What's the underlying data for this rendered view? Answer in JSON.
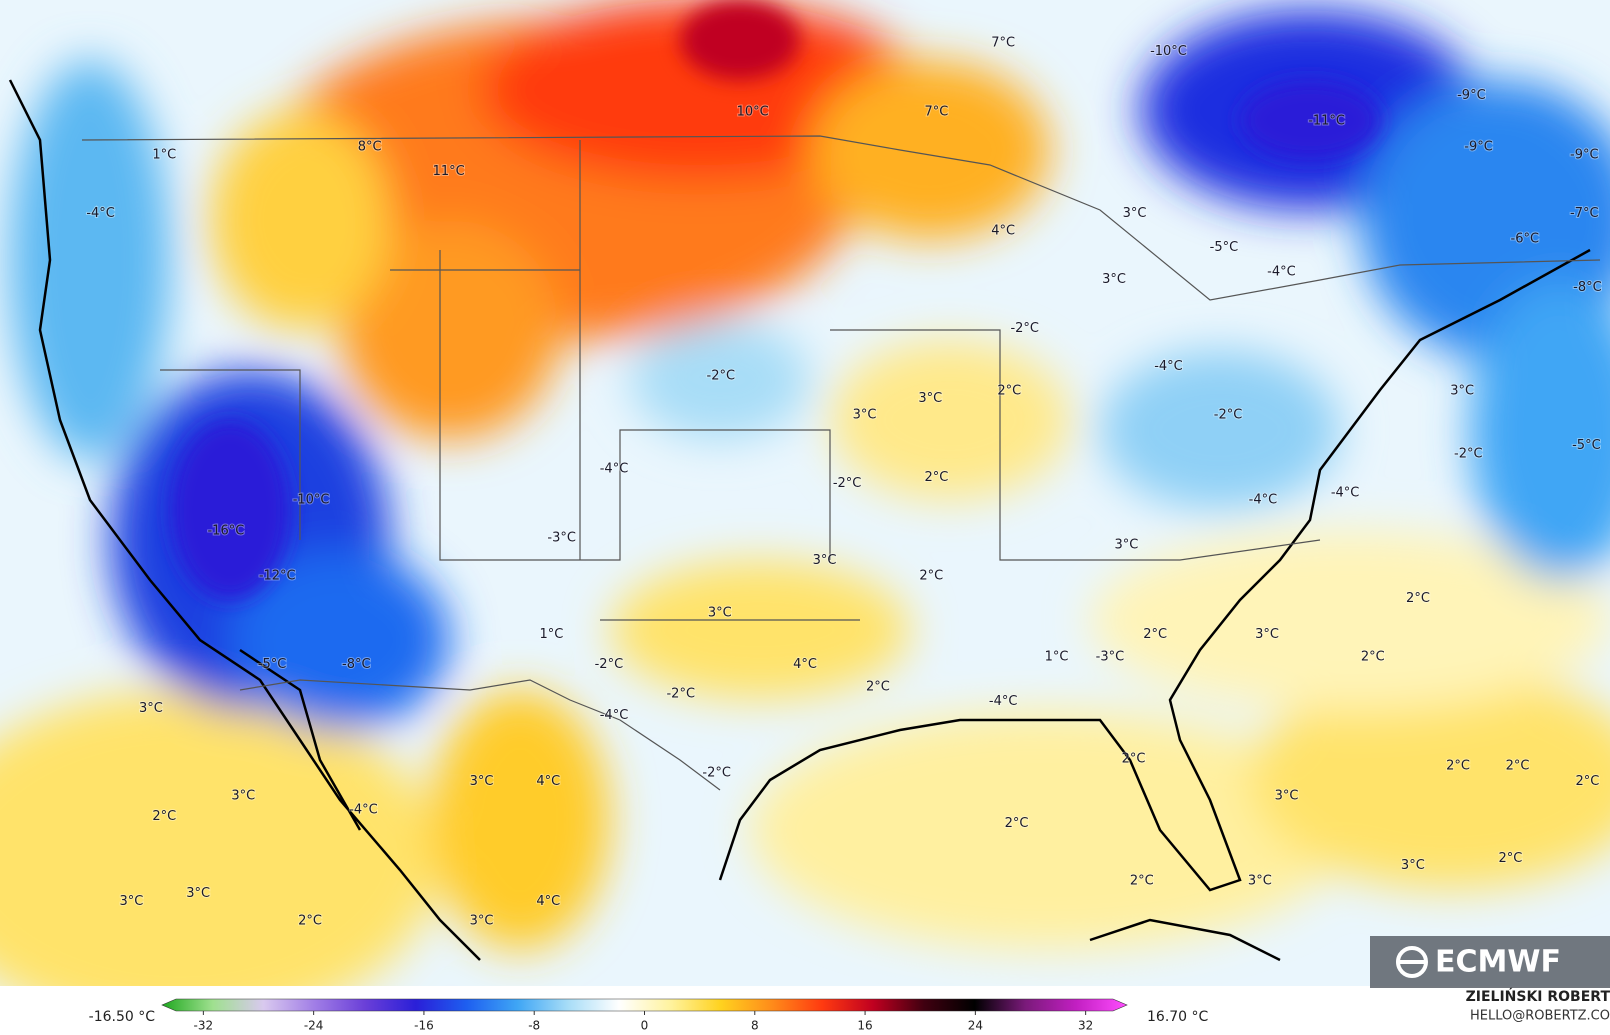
{
  "map": {
    "labels": [
      "7°C",
      "-10°C",
      "-11°C",
      "-9°C",
      "-9°C",
      "-9°C",
      "-7°C",
      "-6°C",
      "-8°C",
      "10°C",
      "7°C",
      "8°C",
      "11°C",
      "1°C",
      "-4°C",
      "4°C",
      "3°C",
      "3°C",
      "-5°C",
      "-4°C",
      "-2°C",
      "-4°C",
      "-2°C",
      "3°C",
      "2°C",
      "3°C",
      "3°C",
      "-2°C",
      "-2°C",
      "-5°C",
      "2°C",
      "-2°C",
      "-4°C",
      "-10°C",
      "-16°C",
      "-3°C",
      "-4°C",
      "-4°C",
      "-12°C",
      "3°C",
      "3°C",
      "2°C",
      "2°C",
      "3°C",
      "1°C",
      "2°C",
      "3°C",
      "2°C",
      "-2°C",
      "1°C",
      "-3°C",
      "-5°C",
      "-8°C",
      "4°C",
      "2°C",
      "-2°C",
      "-4°C",
      "-4°C",
      "3°C",
      "-2°C",
      "3°C",
      "4°C",
      "2°C",
      "2°C",
      "2°C",
      "2°C",
      "3°C",
      "3°C",
      "2°C",
      "-4°C",
      "2°C",
      "2°C",
      "3°C",
      "3°C",
      "2°C",
      "3°C",
      "3°C",
      "4°C",
      "2°C",
      "3°C"
    ]
  },
  "colorbar": {
    "min_label": "-16.50 °C",
    "max_label": "16.70 °C",
    "lim": [
      -35,
      35
    ],
    "ticks": [
      -32,
      -24,
      -16,
      -8,
      0,
      8,
      16,
      24,
      32
    ],
    "colors": [
      "#1fa81f",
      "#9fe08f",
      "#d9c9ef",
      "#a17ee6",
      "#6a3fd8",
      "#2a1fd8",
      "#1e5ff0",
      "#3fa6f5",
      "#a8ddf7",
      "#ffffff",
      "#fff3a0",
      "#ffd21f",
      "#ff8c1a",
      "#ff3a10",
      "#c00020",
      "#400010",
      "#000000",
      "#7a1a7a",
      "#c21fc2",
      "#ff4dff"
    ]
  },
  "footer": {
    "author": "ZIELIŃSKI ROBERT",
    "email": "HELLO@ROBERTZ.CO",
    "logo": "ECMWF"
  }
}
